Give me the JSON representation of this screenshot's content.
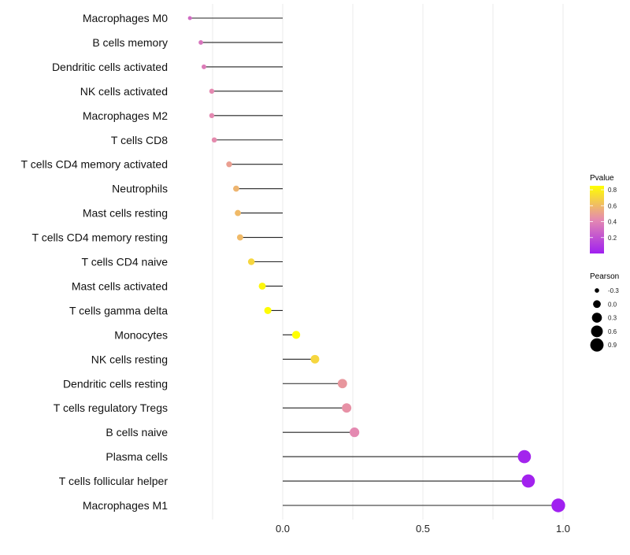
{
  "chart_data": {
    "type": "lollipop",
    "title": "",
    "xlabel": "",
    "ylabel": "",
    "xlim": [
      -0.4,
      1.05
    ],
    "x_ticks": [
      0.0,
      0.5,
      1.0
    ],
    "x_tick_labels": [
      "0.0",
      "0.5",
      "1.0"
    ],
    "grid": true,
    "categories": [
      "Macrophages M0",
      "B cells memory",
      "Dendritic cells activated",
      "NK cells activated",
      "Macrophages M2",
      "T cells CD8",
      "T cells CD4 memory activated",
      "Neutrophils",
      "Mast cells resting",
      "T cells CD4 memory resting",
      "T cells CD4 naive",
      "Mast cells activated",
      "T cells gamma delta",
      "Monocytes",
      "NK cells resting",
      "Dendritic cells resting",
      "T cells regulatory  Tregs",
      "B cells naive",
      "Plasma cells",
      "T cells follicular helper",
      "Macrophages M1"
    ],
    "pearson": [
      -0.331,
      -0.292,
      -0.281,
      -0.253,
      -0.253,
      -0.244,
      -0.191,
      -0.166,
      -0.16,
      -0.152,
      -0.112,
      -0.073,
      -0.053,
      0.048,
      0.115,
      0.213,
      0.228,
      0.256,
      0.862,
      0.876,
      0.983
    ],
    "pvalue": [
      0.3,
      0.34,
      0.37,
      0.42,
      0.42,
      0.43,
      0.5,
      0.58,
      0.6,
      0.6,
      0.7,
      0.82,
      0.84,
      0.86,
      0.7,
      0.47,
      0.45,
      0.42,
      0.02,
      0.01,
      0.0
    ],
    "legend_color": {
      "title": "Pvalue",
      "ticks": [
        "0.8",
        "0.6",
        "0.4",
        "0.2"
      ],
      "tick_values": [
        0.8,
        0.6,
        0.4,
        0.2
      ],
      "range": [
        0.0,
        0.85
      ],
      "low_color": "#a020f0",
      "mid_color": "#e58ab0",
      "high_color": "#ffff00"
    },
    "legend_size": {
      "title": "Pearson",
      "labels": [
        "-0.3",
        "0.0",
        "0.3",
        "0.6",
        "0.9"
      ],
      "values": [
        -0.3,
        0.0,
        0.3,
        0.6,
        0.9
      ]
    },
    "legend_placement": "right"
  }
}
